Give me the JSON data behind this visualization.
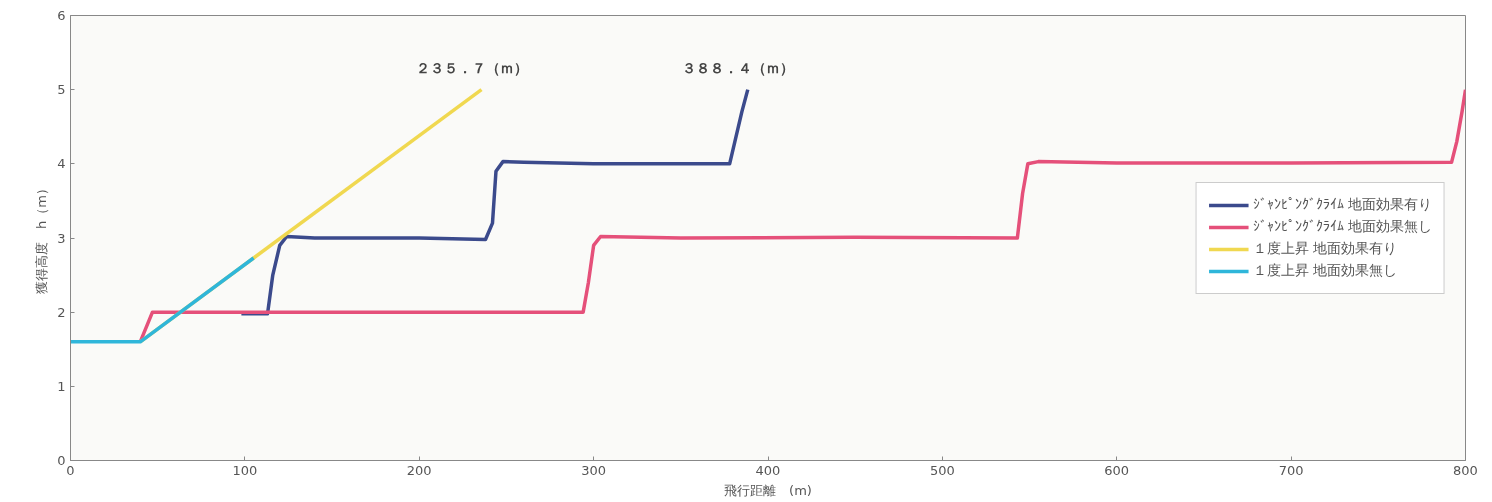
{
  "chart_data": {
    "type": "line",
    "xlabel": "飛行距離　(m)",
    "ylabel": "獲得高度　h（m）",
    "xlim": [
      0,
      800
    ],
    "xticks": [
      0,
      100,
      200,
      300,
      400,
      500,
      600,
      700,
      800
    ],
    "ylim": [
      0,
      6
    ],
    "yticks": [
      0,
      1,
      2,
      3,
      4,
      5,
      6
    ],
    "grid": false,
    "legend": "right",
    "marker": "none",
    "line_style": "solid",
    "series": [
      {
        "name": "ｼﾞｬﾝﾋﾟﾝｸﾞｸﾗｲﾑ 地面効果有り",
        "color": "#3b4a8c",
        "x": [
          98,
          113,
          116,
          120,
          124,
          140,
          200,
          238,
          242,
          244,
          248,
          260,
          300,
          378,
          381,
          385,
          388.4
        ],
        "values": [
          1.98,
          1.98,
          2.5,
          2.9,
          3.02,
          3.0,
          3.0,
          2.98,
          3.2,
          3.9,
          4.03,
          4.02,
          4.0,
          4.0,
          4.3,
          4.7,
          5.0
        ]
      },
      {
        "name": "ｼﾞｬﾝﾋﾟﾝｸﾞｸﾗｲﾑ 地面効果無し",
        "color": "#e5507a",
        "x": [
          40,
          47,
          100,
          200,
          294,
          297,
          300,
          304,
          350,
          450,
          543,
          546,
          549,
          555,
          600,
          700,
          792,
          795,
          798,
          800
        ],
        "values": [
          1.6,
          2.0,
          2.0,
          2.0,
          2.0,
          2.4,
          2.9,
          3.02,
          3.0,
          3.01,
          3.0,
          3.6,
          4.0,
          4.03,
          4.01,
          4.01,
          4.02,
          4.3,
          4.7,
          5.0
        ]
      },
      {
        "name": "１度上昇 地面効果有り",
        "color": "#f0d850",
        "x": [
          40,
          235.7
        ],
        "values": [
          1.6,
          5.0
        ]
      },
      {
        "name": "１度上昇 地面効果無し",
        "color": "#2fb6da",
        "x": [
          0,
          40,
          105
        ],
        "values": [
          1.6,
          1.6,
          2.73
        ]
      }
    ],
    "annotations": [
      {
        "text": "２３５．７（ｍ）",
        "x": 235.7,
        "y": 5.0
      },
      {
        "text": "３８８．４（ｍ）",
        "x": 388.4,
        "y": 5.0
      }
    ]
  }
}
